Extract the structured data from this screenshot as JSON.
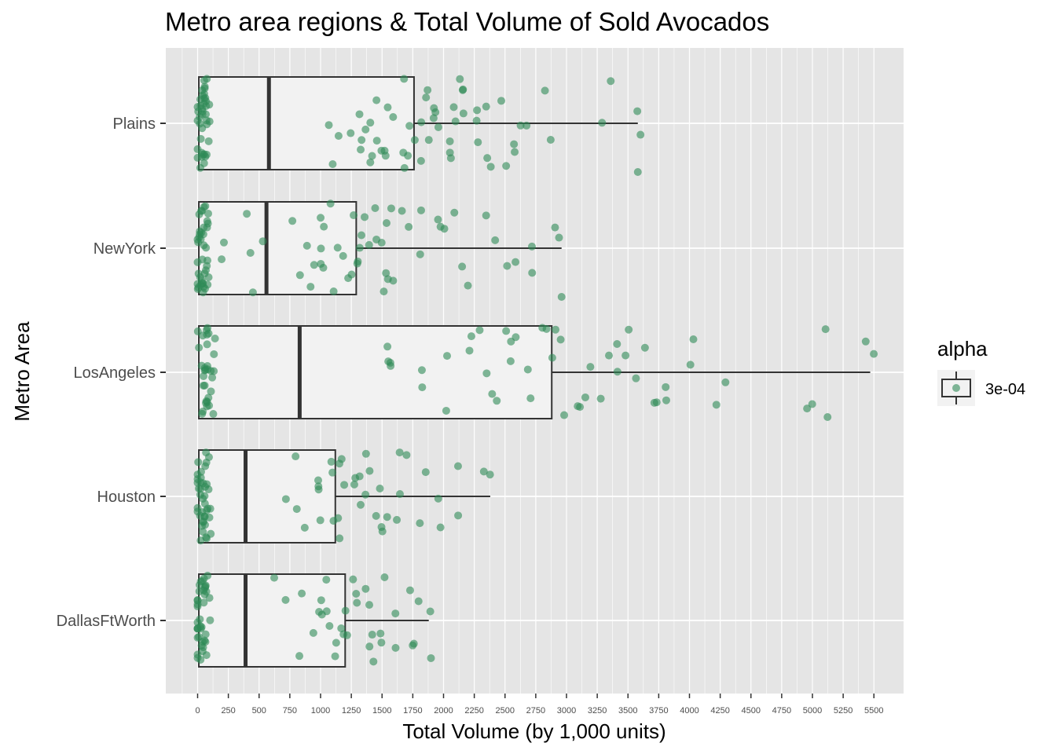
{
  "chart_data": {
    "type": "boxplot-jitter",
    "title": "Metro area regions & Total Volume of Sold Avocados",
    "xlabel": "Total Volume (by 1,000 units)",
    "ylabel": "Metro Area",
    "xlim": [
      -250,
      5750
    ],
    "x_ticks": [
      0,
      250,
      500,
      750,
      1000,
      1250,
      1500,
      1750,
      2000,
      2250,
      2500,
      2750,
      3000,
      3250,
      3500,
      3750,
      4000,
      4250,
      4500,
      4750,
      5000,
      5250,
      5500
    ],
    "x_tick_labels": [
      "0",
      "250",
      "500",
      "750",
      "1000",
      "1250",
      "1500",
      "1750",
      "2000",
      "2250",
      "2500",
      "2750",
      "3000",
      "3250",
      "3500",
      "3750",
      "4000",
      "4250",
      "4500",
      "4750",
      "5000",
      "5250",
      "5500"
    ],
    "categories": [
      "Plains",
      "NewYork",
      "LosAngeles",
      "Houston",
      "DallasFtWorth"
    ],
    "point_color": "#2e8b57",
    "box_fill": "#f2f2f2",
    "panel_background": "#e5e5e5",
    "grid_color": "#ffffff",
    "grid": true,
    "boxes": [
      {
        "category": "Plains",
        "lower_whisker": 10,
        "q1": 10,
        "median": 580,
        "q3": 1760,
        "upper_whisker": 3580,
        "outliers": [
          3580
        ]
      },
      {
        "category": "NewYork",
        "lower_whisker": 10,
        "q1": 10,
        "median": 560,
        "q3": 1290,
        "upper_whisker": 2960,
        "outliers": [
          2960
        ]
      },
      {
        "category": "LosAngeles",
        "lower_whisker": 10,
        "q1": 10,
        "median": 830,
        "q3": 2880,
        "upper_whisker": 5470,
        "outliers": []
      },
      {
        "category": "Houston",
        "lower_whisker": 10,
        "q1": 10,
        "median": 390,
        "q3": 1120,
        "upper_whisker": 2380,
        "outliers": []
      },
      {
        "category": "DallasFtWorth",
        "lower_whisker": 10,
        "q1": 10,
        "median": 390,
        "q3": 1200,
        "upper_whisker": 1880,
        "outliers": []
      }
    ],
    "points": [
      {
        "category": "Plains",
        "x": [
          10,
          15,
          20,
          25,
          30,
          40,
          50,
          60,
          70,
          80,
          1100,
          1200,
          1300,
          1350,
          1400,
          1450,
          1500,
          1550,
          1600,
          1650,
          1700,
          1750,
          1800,
          1850,
          1900,
          1950,
          2000,
          2050,
          2100,
          2150,
          2200,
          2250,
          2300,
          2400,
          2500,
          2600,
          2650,
          2850,
          3330,
          3580
        ]
      },
      {
        "category": "NewYork",
        "x": [
          10,
          15,
          20,
          25,
          30,
          40,
          50,
          60,
          70,
          80,
          180,
          420,
          500,
          800,
          900,
          950,
          1000,
          1050,
          1100,
          1150,
          1200,
          1250,
          1300,
          1350,
          1400,
          1450,
          1500,
          1550,
          1600,
          1700,
          1800,
          2000,
          2050,
          2200,
          2400,
          2550,
          2750,
          2960
        ]
      },
      {
        "category": "LosAngeles",
        "x": [
          40,
          50,
          60,
          70,
          80,
          90,
          100,
          110,
          1500,
          1600,
          1800,
          2000,
          2200,
          2300,
          2400,
          2500,
          2600,
          2700,
          2800,
          2900,
          3000,
          3100,
          3200,
          3300,
          3400,
          3500,
          3600,
          3700,
          3850,
          4000,
          4250,
          4980,
          5080,
          5470
        ]
      },
      {
        "category": "Houston",
        "x": [
          10,
          15,
          20,
          25,
          30,
          40,
          50,
          60,
          70,
          80,
          750,
          850,
          950,
          1000,
          1050,
          1100,
          1150,
          1200,
          1250,
          1300,
          1350,
          1400,
          1450,
          1500,
          1600,
          1700,
          1850,
          2000,
          2130,
          2380
        ]
      },
      {
        "category": "DallasFtWorth",
        "x": [
          10,
          15,
          20,
          25,
          30,
          40,
          50,
          60,
          70,
          80,
          670,
          850,
          950,
          1000,
          1050,
          1100,
          1150,
          1200,
          1250,
          1300,
          1350,
          1400,
          1450,
          1500,
          1600,
          1750,
          1800,
          1880
        ]
      }
    ],
    "legend": {
      "title": "alpha",
      "label": "3e-04",
      "placement": "right"
    }
  }
}
